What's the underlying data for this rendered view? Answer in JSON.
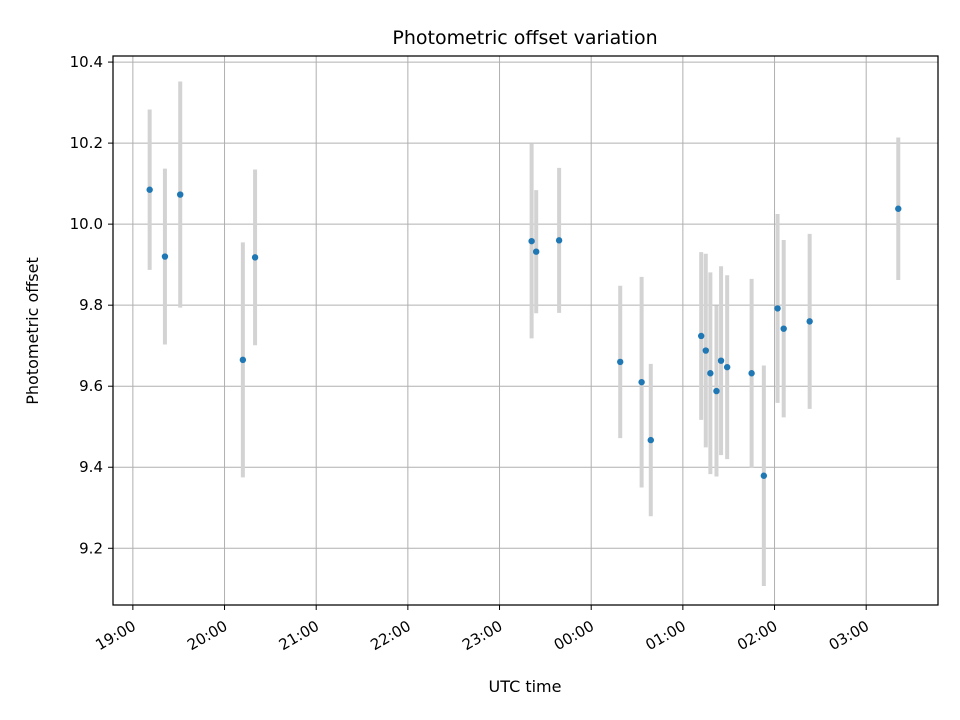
{
  "chart_data": {
    "type": "scatter",
    "title": "Photometric offset variation",
    "xlabel": "UTC time",
    "ylabel": "Photometric offset",
    "x_ticks": [
      "19:00",
      "20:00",
      "21:00",
      "22:00",
      "23:00",
      "00:00",
      "01:00",
      "02:00",
      "03:00"
    ],
    "y_ticks": [
      "9.2",
      "9.4",
      "9.6",
      "9.8",
      "10.0",
      "10.2",
      "10.4"
    ],
    "xlim": [
      "18:47",
      "03:47"
    ],
    "ylim": [
      9.06,
      10.415
    ],
    "grid": true,
    "colors": {
      "point": "#1f77b4",
      "errorbar": "#d3d3d3",
      "grid": "#b0b0b0"
    },
    "series": [
      {
        "points": [
          {
            "x": "19:11",
            "y": 10.085,
            "yerr": 0.198
          },
          {
            "x": "19:21",
            "y": 9.92,
            "yerr": 0.217
          },
          {
            "x": "19:31",
            "y": 10.073,
            "yerr": 0.279
          },
          {
            "x": "20:12",
            "y": 9.665,
            "yerr": 0.29
          },
          {
            "x": "20:20",
            "y": 9.918,
            "yerr": 0.217
          },
          {
            "x": "23:21",
            "y": 9.958,
            "yerr": 0.24
          },
          {
            "x": "23:24",
            "y": 9.932,
            "yerr": 0.152
          },
          {
            "x": "23:39",
            "y": 9.96,
            "yerr": 0.179
          },
          {
            "x": "00:19",
            "y": 9.66,
            "yerr": 0.188
          },
          {
            "x": "00:33",
            "y": 9.61,
            "yerr": 0.26
          },
          {
            "x": "00:39",
            "y": 9.467,
            "yerr": 0.188
          },
          {
            "x": "01:12",
            "y": 9.724,
            "yerr": 0.207
          },
          {
            "x": "01:15",
            "y": 9.688,
            "yerr": 0.239
          },
          {
            "x": "01:18",
            "y": 9.632,
            "yerr": 0.249
          },
          {
            "x": "01:22",
            "y": 9.588,
            "yerr": 0.211
          },
          {
            "x": "01:25",
            "y": 9.663,
            "yerr": 0.233
          },
          {
            "x": "01:29",
            "y": 9.647,
            "yerr": 0.227
          },
          {
            "x": "01:45",
            "y": 9.632,
            "yerr": 0.233
          },
          {
            "x": "01:53",
            "y": 9.379,
            "yerr": 0.272
          },
          {
            "x": "02:02",
            "y": 9.792,
            "yerr": 0.233
          },
          {
            "x": "02:06",
            "y": 9.742,
            "yerr": 0.219
          },
          {
            "x": "02:23",
            "y": 9.76,
            "yerr": 0.216
          },
          {
            "x": "03:21",
            "y": 10.038,
            "yerr": 0.176
          }
        ]
      }
    ]
  }
}
